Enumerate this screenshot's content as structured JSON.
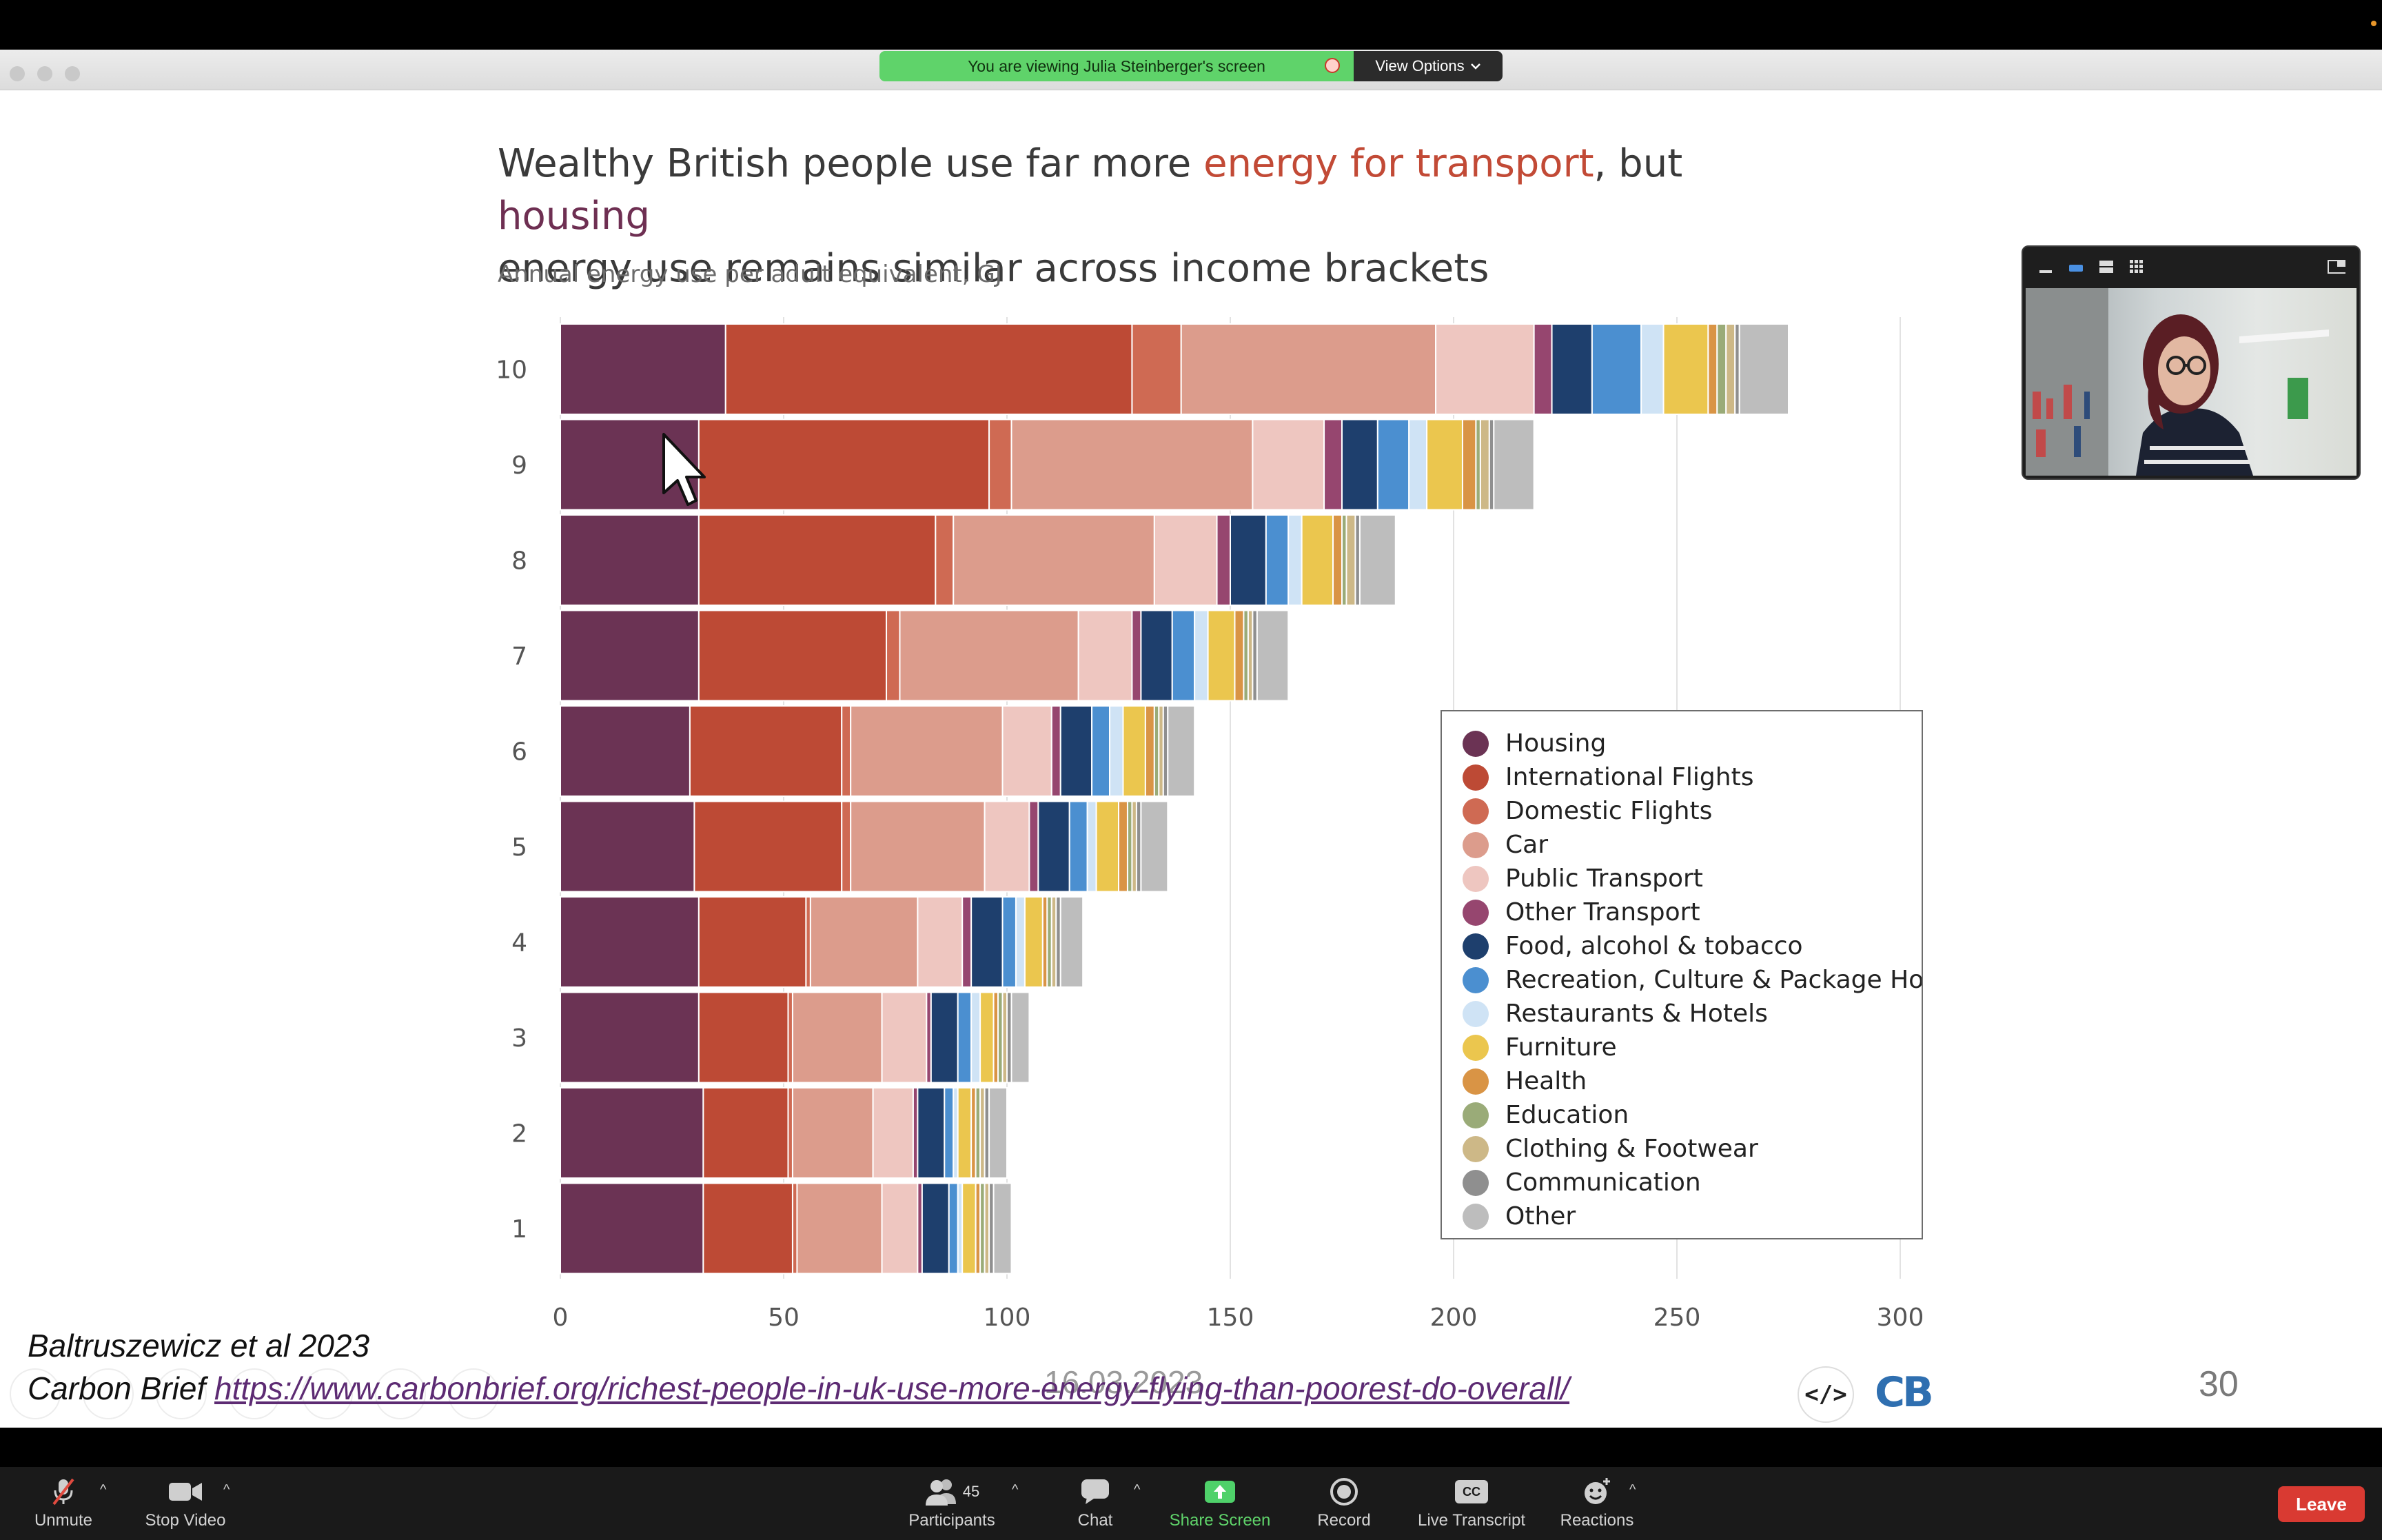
{
  "window": {
    "share_banner_text": "You are viewing Julia Steinberger's screen",
    "view_options_label": "View Options"
  },
  "slide": {
    "title_part1": "Wealthy British people use far more ",
    "title_highlight_transport": "energy for transport",
    "title_part2": ", but ",
    "title_highlight_housing": "housing",
    "title_part3": "energy use remains similar across income brackets",
    "subtitle": "Annual energy use per adult equivalent, GJ",
    "reference_author": "Baltruszewicz et al 2023",
    "reference_source_label": "Carbon Brief ",
    "reference_url": "https://www.carbonbrief.org/richest-people-in-uk-use-more-energy-flying-than-poorest-do-overall/",
    "date": "16.03.2023",
    "slide_number": "30",
    "code_icon_text": "</>",
    "logo_text": "CB"
  },
  "chart_data": {
    "type": "bar",
    "orientation": "horizontal",
    "stacked": true,
    "title": "Wealthy British people use far more energy for transport, but housing energy use remains similar across income brackets",
    "subtitle": "Annual energy use per adult equivalent, GJ",
    "categories": [
      "10",
      "9",
      "8",
      "7",
      "6",
      "5",
      "4",
      "3",
      "2",
      "1"
    ],
    "xlim": [
      0,
      300
    ],
    "xticks": [
      "0",
      "50",
      "100",
      "150",
      "200",
      "250",
      "300"
    ],
    "grid": "vertical",
    "legend_position": "right",
    "series": [
      {
        "name": "Housing",
        "color": "#6b3354",
        "values": [
          37,
          31,
          31,
          31,
          29,
          30,
          31,
          31,
          32,
          32
        ]
      },
      {
        "name": "International Flights",
        "color": "#bd4a35",
        "values": [
          91,
          65,
          53,
          42,
          34,
          33,
          24,
          20,
          19,
          20
        ]
      },
      {
        "name": "Domestic Flights",
        "color": "#cf6a53",
        "values": [
          11,
          5,
          4,
          3,
          2,
          2,
          1,
          1,
          1,
          1
        ]
      },
      {
        "name": "Car",
        "color": "#dc9c8c",
        "values": [
          57,
          54,
          45,
          40,
          34,
          30,
          24,
          20,
          18,
          19
        ]
      },
      {
        "name": "Public Transport",
        "color": "#eec6c0",
        "values": [
          22,
          16,
          14,
          12,
          11,
          10,
          10,
          10,
          9,
          8
        ]
      },
      {
        "name": "Other Transport",
        "color": "#96466f",
        "values": [
          4,
          4,
          3,
          2,
          2,
          2,
          2,
          1,
          1,
          1
        ]
      },
      {
        "name": "Food, alcohol & tobacco",
        "color": "#1e3f6d",
        "values": [
          9,
          8,
          8,
          7,
          7,
          7,
          7,
          6,
          6,
          6
        ]
      },
      {
        "name": "Recreation, Culture & Package Hol",
        "color": "#4b8fd0",
        "values": [
          11,
          7,
          5,
          5,
          4,
          4,
          3,
          3,
          2,
          2
        ]
      },
      {
        "name": "Restaurants & Hotels",
        "color": "#cfe3f5",
        "values": [
          5,
          4,
          3,
          3,
          3,
          2,
          2,
          2,
          1,
          1
        ]
      },
      {
        "name": "Furniture",
        "color": "#ebc64e",
        "values": [
          10,
          8,
          7,
          6,
          5,
          5,
          4,
          3,
          3,
          3
        ]
      },
      {
        "name": "Health",
        "color": "#d99445",
        "values": [
          2,
          3,
          2,
          2,
          2,
          2,
          1,
          1,
          1,
          1
        ]
      },
      {
        "name": "Education",
        "color": "#9aab78",
        "values": [
          2,
          1,
          1,
          1,
          1,
          1,
          1,
          1,
          1,
          1
        ]
      },
      {
        "name": "Clothing & Footwear",
        "color": "#cdb887",
        "values": [
          2,
          2,
          2,
          1,
          1,
          1,
          1,
          1,
          1,
          1
        ]
      },
      {
        "name": "Communication",
        "color": "#8f8f8f",
        "values": [
          1,
          1,
          1,
          1,
          1,
          1,
          1,
          1,
          1,
          1
        ]
      },
      {
        "name": "Other",
        "color": "#bdbdbd",
        "values": [
          11,
          9,
          8,
          7,
          6,
          6,
          5,
          4,
          4,
          4
        ]
      }
    ]
  },
  "thumbnail": {
    "icons": [
      "minimize-icon",
      "speaker-view-icon",
      "strip-view-icon",
      "gallery-view-icon",
      "exit-fullscreen-icon"
    ]
  },
  "toolbar": {
    "unmute_label": "Unmute",
    "stop_video_label": "Stop Video",
    "participants_label": "Participants",
    "participants_count": "45",
    "chat_label": "Chat",
    "share_screen_label": "Share Screen",
    "record_label": "Record",
    "live_transcript_label": "Live Transcript",
    "cc_icon_text": "CC",
    "reactions_label": "Reactions",
    "leave_label": "Leave",
    "share_screen_color": "#4fd16a",
    "leave_color": "#d93a32"
  }
}
